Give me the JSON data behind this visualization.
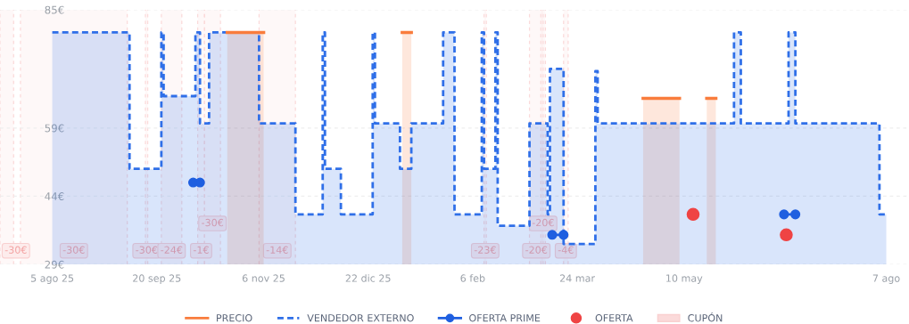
{
  "chart_data": {
    "type": "area",
    "xlim": [
      "2025-07-13",
      "2026-08-17"
    ],
    "xticks": [
      {
        "value": "2025-08-05",
        "label": "5 ago 25"
      },
      {
        "value": "2025-09-20",
        "label": "20 sep 25"
      },
      {
        "value": "2025-11-06",
        "label": "6 nov 25"
      },
      {
        "value": "2025-12-22",
        "label": "22 dic 25"
      },
      {
        "value": "2026-02-06",
        "label": "6 feb"
      },
      {
        "value": "2026-03-24",
        "label": "24 mar"
      },
      {
        "value": "2026-05-10",
        "label": "10 may"
      },
      {
        "value": "2026-08-07",
        "label": "7 ago"
      }
    ],
    "ylim": [
      29,
      85
    ],
    "yticks": [
      {
        "value": 29,
        "label": "29€"
      },
      {
        "value": 44,
        "label": "44€"
      },
      {
        "value": 59,
        "label": "59€"
      },
      {
        "value": 85,
        "label": "85€"
      }
    ],
    "grid": "y",
    "legend": "bottom",
    "series": [
      {
        "name": "PRECIO",
        "color": "#f97c3c",
        "line_style": "solid",
        "x": [
          "2025-10-21",
          "2025-11-06",
          "2025-11-07",
          "2026-01-06",
          "2026-01-10",
          "2026-01-11",
          "2026-04-22",
          "2026-05-08",
          "2026-05-09",
          "2026-05-20",
          "2026-05-24"
        ],
        "values": [
          80,
          80,
          null,
          80,
          80,
          null,
          65.5,
          65.5,
          null,
          65.5,
          65.5
        ]
      },
      {
        "name": "VENDEDOR EXTERNO",
        "color": "#2f6fe8",
        "line_style": "dashed",
        "x": [
          "2025-08-05",
          "2025-09-08",
          "2025-09-08",
          "2025-09-22",
          "2025-09-22",
          "2025-09-23",
          "2025-09-23",
          "2025-10-07",
          "2025-10-07",
          "2025-10-09",
          "2025-10-09",
          "2025-10-13",
          "2025-10-13",
          "2025-11-04",
          "2025-11-04",
          "2025-11-20",
          "2025-11-20",
          "2025-12-02",
          "2025-12-02",
          "2025-12-03",
          "2025-12-03",
          "2025-12-10",
          "2025-12-10",
          "2025-12-24",
          "2025-12-24",
          "2025-12-25",
          "2025-12-25",
          "2026-01-05",
          "2026-01-05",
          "2026-01-10",
          "2026-01-10",
          "2026-01-24",
          "2026-01-24",
          "2026-01-29",
          "2026-01-29",
          "2026-02-10",
          "2026-02-10",
          "2026-02-11",
          "2026-02-11",
          "2026-02-16",
          "2026-02-16",
          "2026-02-17",
          "2026-02-17",
          "2026-03-03",
          "2026-03-03",
          "2026-03-11",
          "2026-03-11",
          "2026-03-12",
          "2026-03-12",
          "2026-03-18",
          "2026-03-18",
          "2026-04-01",
          "2026-04-01",
          "2026-04-02",
          "2026-04-02",
          "2026-06-01",
          "2026-06-01",
          "2026-06-04",
          "2026-06-04",
          "2026-06-25",
          "2026-06-25",
          "2026-06-28",
          "2026-06-28",
          "2026-08-04",
          "2026-08-04",
          "2026-08-07"
        ],
        "values": [
          80,
          80,
          50,
          50,
          80,
          80,
          66,
          66,
          80,
          80,
          60,
          60,
          80,
          80,
          60,
          60,
          40,
          40,
          80,
          80,
          50,
          50,
          40,
          40,
          80,
          80,
          60,
          60,
          50,
          50,
          60,
          60,
          80,
          80,
          40,
          40,
          80,
          80,
          50,
          50,
          80,
          80,
          37.5,
          37.5,
          60,
          60,
          40,
          40,
          72,
          72,
          33.5,
          33.5,
          71.5,
          71.5,
          60,
          60,
          80,
          80,
          60,
          60,
          80,
          80,
          60,
          60,
          40,
          40
        ]
      },
      {
        "name": "OFERTA PRIME",
        "type": "line",
        "color": "#1f5fe0",
        "marker": "circle",
        "line_style": "solid",
        "x": [
          "2025-10-06",
          "2025-10-09",
          "2025-10-10",
          "2026-03-13",
          "2026-03-18",
          "2026-03-19",
          "2026-06-23",
          "2026-06-28"
        ],
        "values": [
          47,
          47,
          null,
          35.5,
          35.5,
          null,
          40,
          40
        ]
      },
      {
        "name": "OFERTA",
        "type": "scatter",
        "color": "#ef4444",
        "marker": "circle",
        "x": [
          "2026-05-14",
          "2026-06-24"
        ],
        "values": [
          40,
          35.5
        ]
      }
    ],
    "bands": [
      {
        "axis": "x",
        "from": "2025-07-13",
        "to": "2025-07-19",
        "label": "-30€",
        "color": "#fbdada"
      },
      {
        "axis": "x",
        "from": "2025-07-22",
        "to": "2025-09-07",
        "label": "-30€",
        "color": "#fbdada"
      },
      {
        "axis": "x",
        "from": "2025-09-15",
        "to": "2025-09-16",
        "label": "-30€",
        "color": "#fbdada"
      },
      {
        "axis": "x",
        "from": "2025-09-22",
        "to": "2025-10-01",
        "label": "-24€",
        "color": "#fbdada"
      },
      {
        "axis": "x",
        "from": "2025-10-08",
        "to": "2025-10-11",
        "label": "-1€",
        "color": "#fbdada"
      },
      {
        "axis": "x",
        "from": "2025-10-11",
        "to": "2025-10-18",
        "label": "-30€",
        "color": "#fbdada"
      },
      {
        "axis": "x",
        "from": "2025-11-04",
        "to": "2025-11-20",
        "label": "-14€",
        "color": "#fbdada"
      },
      {
        "axis": "x",
        "from": "2026-02-11",
        "to": "2026-02-12",
        "label": "-23€",
        "color": "#fbdada"
      },
      {
        "axis": "x",
        "from": "2026-03-03",
        "to": "2026-03-09",
        "label": "-20€",
        "color": "#fbdada"
      },
      {
        "axis": "x",
        "from": "2026-03-08",
        "to": "2026-03-10",
        "label": "-20€",
        "color": "#fbdada"
      },
      {
        "axis": "x",
        "from": "2026-03-18",
        "to": "2026-03-20",
        "label": "-4€",
        "color": "#fbdada"
      }
    ],
    "annotations": [
      "CUPÓN"
    ]
  }
}
